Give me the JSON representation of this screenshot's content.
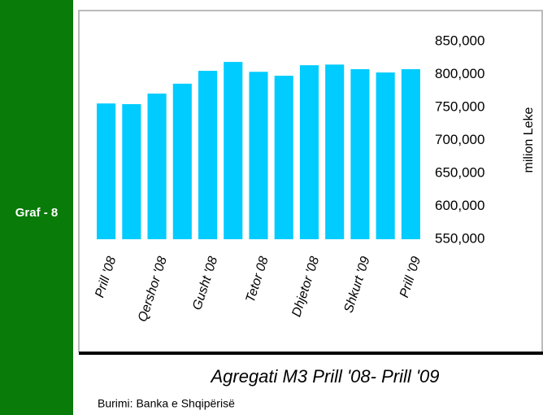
{
  "side_label": "Graf - 8",
  "source": "Burimi: Banka e Shqipërisë",
  "chart_data": {
    "type": "bar",
    "title": "Agregati M3 Prill '08- Prill '09",
    "y_label": "milion Leke",
    "categories": [
      "Prill '08",
      null,
      "Qershor '08",
      null,
      "Gusht '08",
      null,
      "Tetor 08",
      null,
      "Dhjetor '08",
      null,
      "Shkurt '09",
      null,
      "Prill '09"
    ],
    "values": [
      756000,
      755000,
      771000,
      786000,
      805500,
      819000,
      804000,
      798000,
      814000,
      815000,
      808000,
      803000,
      808000
    ],
    "color": "#00ccff",
    "ylim": [
      550000,
      850000
    ],
    "yticks": [
      {
        "value": 550000,
        "label": "550,000"
      },
      {
        "value": 600000,
        "label": "600,000"
      },
      {
        "value": 650000,
        "label": "650,000"
      },
      {
        "value": 700000,
        "label": "700,000"
      },
      {
        "value": 750000,
        "label": "750,000"
      },
      {
        "value": 800000,
        "label": "800,000"
      },
      {
        "value": 850000,
        "label": "850,000"
      }
    ],
    "grid": false
  }
}
